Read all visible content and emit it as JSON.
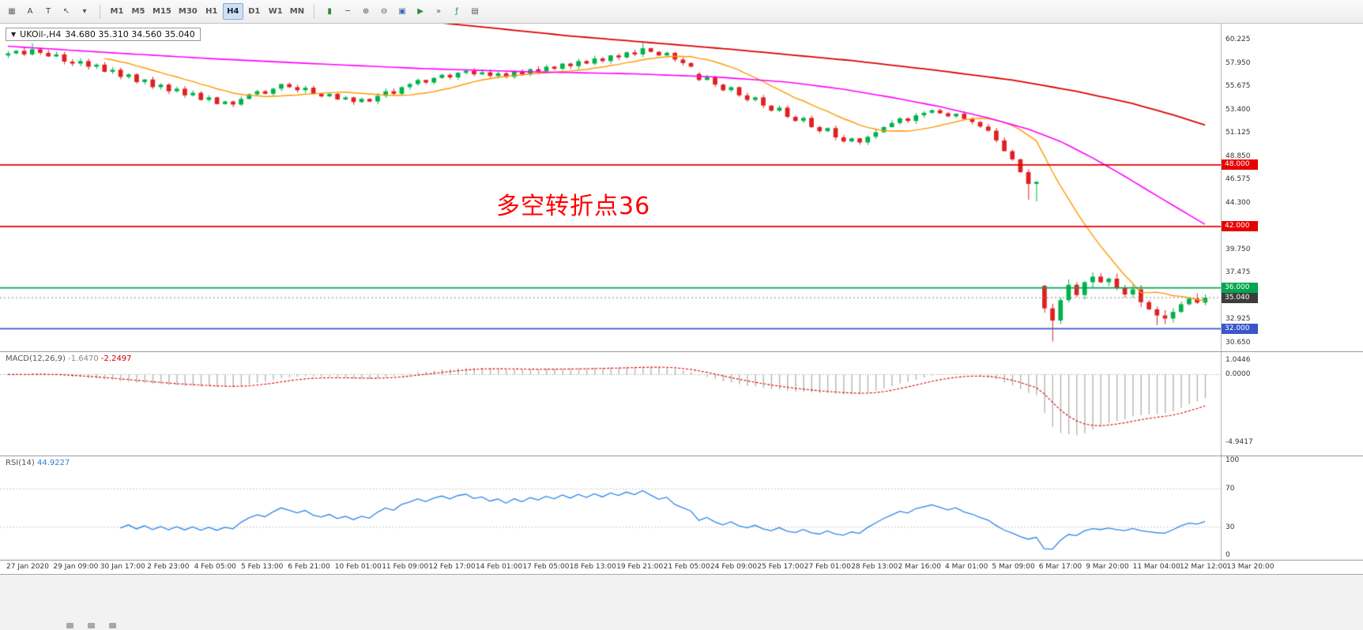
{
  "toolbar": {
    "left_tools": [
      {
        "name": "chart-grid",
        "glyph": "▦",
        "color": "#666666"
      },
      {
        "name": "arrow-tool",
        "glyph": "A",
        "color": "#444444"
      },
      {
        "name": "text-tool",
        "glyph": "T",
        "color": "#444444"
      },
      {
        "name": "cursor-tool",
        "glyph": "↖",
        "color": "#555555"
      },
      {
        "name": "draw-dropdown",
        "glyph": "▾",
        "color": "#555555"
      }
    ],
    "timeframes": [
      "M1",
      "M5",
      "M15",
      "M30",
      "H1",
      "H4",
      "D1",
      "W1",
      "MN"
    ],
    "active_timeframe": "H4",
    "right_tools": [
      {
        "name": "candles-view",
        "glyph": "▮",
        "color": "#2e8b2e"
      },
      {
        "name": "line-view",
        "glyph": "─",
        "color": "#b03030"
      },
      {
        "name": "zoom-in",
        "glyph": "⊕",
        "color": "#555555"
      },
      {
        "name": "zoom-out",
        "glyph": "⊖",
        "color": "#555555"
      },
      {
        "name": "tile-windows",
        "glyph": "▣",
        "color": "#3a6ab0"
      },
      {
        "name": "auto-scroll",
        "glyph": "▶",
        "color": "#2e8b2e"
      },
      {
        "name": "chart-shift",
        "glyph": "»",
        "color": "#555555"
      },
      {
        "name": "indicators",
        "glyph": "ƒ",
        "color": "#1f8b3b"
      },
      {
        "name": "templates",
        "glyph": "▤",
        "color": "#555555"
      }
    ]
  },
  "main_chart": {
    "title": {
      "dropdown_glyph": "▼",
      "symbol": "UKOil-,H4",
      "ohlc": "34.680 35.310 34.560 35.040"
    },
    "annotation": {
      "text": "多空转折点36",
      "color": "#ff0000"
    },
    "levels": [
      {
        "price": 48.0,
        "label": "48.000",
        "color": "#e60000"
      },
      {
        "price": 42.0,
        "label": "42.000",
        "color": "#e60000"
      },
      {
        "price": 36.0,
        "label": "36.000",
        "color": "#00a650"
      },
      {
        "price": 32.0,
        "label": "32.000",
        "color": "#3a57c8"
      }
    ],
    "current_price": {
      "price": 35.04,
      "label": "35.040",
      "bg": "#3c3c3c"
    },
    "y_range": [
      29.8,
      61.8
    ],
    "y_axis": [
      {
        "price": 60.225,
        "label": "60.225"
      },
      {
        "price": 57.95,
        "label": "57.950"
      },
      {
        "price": 55.675,
        "label": "55.675"
      },
      {
        "price": 53.4,
        "label": "53.400"
      },
      {
        "price": 51.125,
        "label": "51.125"
      },
      {
        "price": 48.85,
        "label": "48.850"
      },
      {
        "price": 46.575,
        "label": "46.575"
      },
      {
        "price": 44.3,
        "label": "44.300"
      },
      {
        "price": 39.75,
        "label": "39.750"
      },
      {
        "price": 37.475,
        "label": "37.475"
      },
      {
        "price": 32.925,
        "label": "32.925"
      },
      {
        "price": 30.65,
        "label": "30.650"
      }
    ]
  },
  "chart_data": {
    "type": "candlestick",
    "symbol": "UKOil-",
    "timeframe": "H4",
    "ohlc_display": {
      "open": "34.680",
      "high": "35.310",
      "low": "34.560",
      "close": "35.040"
    },
    "first_open": 58.7,
    "closes": [
      58.9,
      59.15,
      58.8,
      59.3,
      58.95,
      58.6,
      58.8,
      58.1,
      57.9,
      58.15,
      57.6,
      57.8,
      57.1,
      57.3,
      56.6,
      56.85,
      56.1,
      56.35,
      55.6,
      55.85,
      55.2,
      55.45,
      54.8,
      55.05,
      54.35,
      54.6,
      53.95,
      54.2,
      53.9,
      54.45,
      54.9,
      55.2,
      54.95,
      55.45,
      55.9,
      55.6,
      55.3,
      55.55,
      54.95,
      54.7,
      54.95,
      54.4,
      54.6,
      54.15,
      54.45,
      54.2,
      54.75,
      55.2,
      54.95,
      55.6,
      55.9,
      56.3,
      56.05,
      56.5,
      56.8,
      56.55,
      57.0,
      57.2,
      56.85,
      57.05,
      56.7,
      56.95,
      56.6,
      57.1,
      56.85,
      57.35,
      57.15,
      57.6,
      57.4,
      57.9,
      57.65,
      58.15,
      57.9,
      58.4,
      58.15,
      58.7,
      58.5,
      59.0,
      58.8,
      59.4,
      59.05,
      58.7,
      58.95,
      58.3,
      57.95,
      57.6,
      56.3,
      56.6,
      55.85,
      55.3,
      55.6,
      54.8,
      54.35,
      54.6,
      53.8,
      53.3,
      53.6,
      52.7,
      52.3,
      52.6,
      51.7,
      51.3,
      51.6,
      50.7,
      50.3,
      50.6,
      50.2,
      50.75,
      51.2,
      51.7,
      52.1,
      52.55,
      52.3,
      52.85,
      53.1,
      53.35,
      53.05,
      52.75,
      53.0,
      52.5,
      52.2,
      51.75,
      51.35,
      50.4,
      49.35,
      48.55,
      47.3,
      46.15,
      46.35,
      34.0,
      32.8,
      34.8,
      36.3,
      35.3,
      36.55,
      37.1,
      36.55,
      36.9,
      36.0,
      35.35,
      35.85,
      34.6,
      33.9,
      33.3,
      33.0,
      33.65,
      34.4,
      34.95,
      34.55,
      35.04
    ],
    "gap_opens": {
      "86": 56.9,
      "129": 36.2
    },
    "wick_overrides": {
      "3": {
        "high": 59.9
      },
      "79": {
        "high": 59.95
      },
      "127": {
        "low": 44.6
      },
      "128": {
        "low": 44.45
      },
      "130": {
        "low": 30.75
      },
      "143": {
        "low": 32.35
      },
      "144": {
        "low": 32.45
      }
    },
    "ma_fast_period": 13,
    "ma_mid_points": [
      [
        0,
        59.6
      ],
      [
        12,
        59.0
      ],
      [
        25,
        58.4
      ],
      [
        38,
        57.9
      ],
      [
        52,
        57.4
      ],
      [
        65,
        57.1
      ],
      [
        78,
        56.9
      ],
      [
        88,
        56.6
      ],
      [
        97,
        56.1
      ],
      [
        104,
        55.4
      ],
      [
        110,
        54.6
      ],
      [
        116,
        53.7
      ],
      [
        122,
        52.6
      ],
      [
        127,
        51.5
      ],
      [
        131,
        50.3
      ],
      [
        135,
        48.7
      ],
      [
        139,
        46.9
      ],
      [
        143,
        45.0
      ],
      [
        146,
        43.6
      ],
      [
        149,
        42.2
      ]
    ],
    "ma_slow_points": [
      [
        50,
        62.2
      ],
      [
        70,
        60.6
      ],
      [
        90,
        59.3
      ],
      [
        105,
        58.2
      ],
      [
        115,
        57.3
      ],
      [
        125,
        56.3
      ],
      [
        133,
        55.2
      ],
      [
        140,
        54.0
      ],
      [
        145,
        52.9
      ],
      [
        149,
        51.9
      ]
    ],
    "macd": {
      "name": "MACD(12,26,9)",
      "main_value": "-1.6470",
      "signal_value": "-2.2497",
      "range": [
        -5.6,
        1.3
      ],
      "axis_labels": [
        {
          "v": 1.0446,
          "label": "1.0446"
        },
        {
          "v": 0,
          "label": "0.0000"
        },
        {
          "v": -4.9417,
          "label": "-4.9417"
        }
      ]
    },
    "rsi": {
      "name": "RSI(14)",
      "value": "44.9227",
      "period": 14,
      "levels": [
        70,
        30
      ],
      "range": [
        0,
        100
      ],
      "axis_labels": [
        {
          "v": 100,
          "label": "100"
        },
        {
          "v": 70,
          "label": "70"
        },
        {
          "v": 30,
          "label": "30"
        },
        {
          "v": 0,
          "label": "0"
        }
      ]
    },
    "x_labels": [
      "27 Jan 2020",
      "29 Jan 09:00",
      "30 Jan 17:00",
      "2 Feb 23:00",
      "4 Feb 05:00",
      "5 Feb 13:00",
      "6 Feb 21:00",
      "10 Feb 01:00",
      "11 Feb 09:00",
      "12 Feb 17:00",
      "14 Feb 01:00",
      "17 Feb 05:00",
      "18 Feb 13:00",
      "19 Feb 21:00",
      "21 Feb 05:00",
      "24 Feb 09:00",
      "25 Feb 17:00",
      "27 Feb 01:00",
      "28 Feb 13:00",
      "2 Mar 16:00",
      "4 Mar 01:00",
      "5 Mar 09:00",
      "6 Mar 17:00",
      "9 Mar 20:00",
      "11 Mar 04:00",
      "12 Mar 12:00",
      "13 Mar 20:00"
    ]
  },
  "colors": {
    "candle_up": "#00b24a",
    "candle_down": "#e02020",
    "ma_fast": "#ff9900",
    "ma_mid": "#ff00ff",
    "ma_slow": "#dd0000",
    "macd_hist": "#b4b4b4",
    "macd_signal": "#dd0000",
    "rsi_line": "#2e86e8",
    "current_price_line": "#808080",
    "axis_text": "#333333"
  }
}
